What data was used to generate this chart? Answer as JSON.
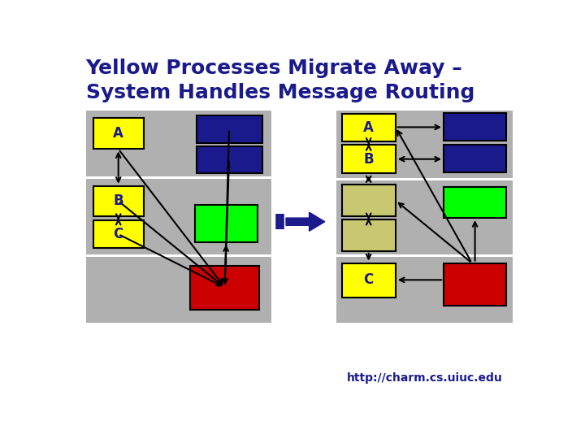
{
  "title_line1": "Yellow Processes Migrate Away –",
  "title_line2": "System Handles Message Routing",
  "title_color": "#1a1a8c",
  "bg_color": "#ffffff",
  "gray": "#b0b0b0",
  "yellow": "#ffff00",
  "blue_dark": "#1a1a8c",
  "green": "#00ff00",
  "red": "#cc0000",
  "olive": "#c8c870",
  "url": "http://charm.cs.uiuc.edu"
}
